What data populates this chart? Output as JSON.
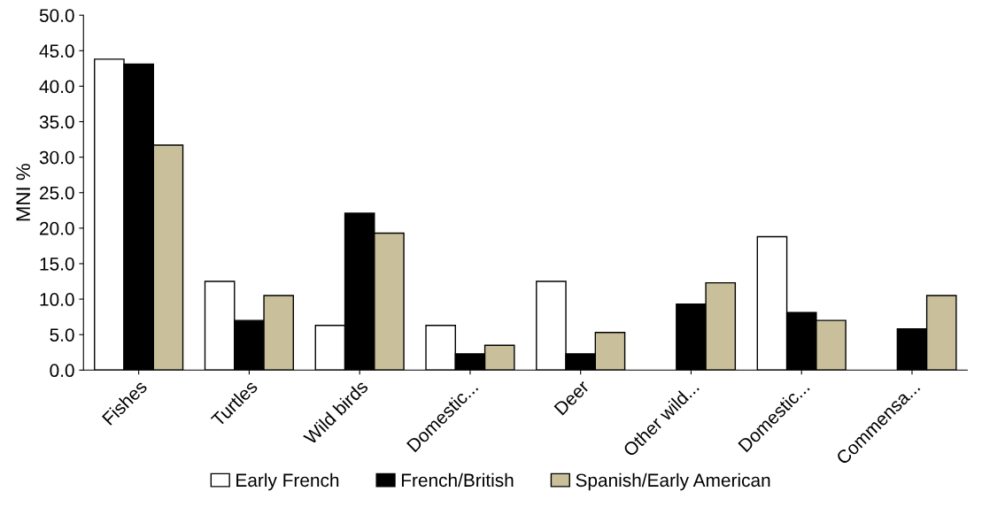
{
  "chart_data": {
    "type": "bar",
    "ylabel": "MNI %",
    "categories": [
      "Fishes",
      "Turtles",
      "Wild birds",
      "Domestic...",
      "Deer",
      "Other wild...",
      "Domestic...",
      "Commensa..."
    ],
    "series": [
      {
        "name": "Early French",
        "color": "#ffffff",
        "values": [
          43.8,
          12.5,
          6.3,
          6.3,
          12.5,
          null,
          18.8,
          null
        ]
      },
      {
        "name": "French/British",
        "color": "#000000",
        "values": [
          43.1,
          7.0,
          22.1,
          2.3,
          2.3,
          9.3,
          8.1,
          5.8
        ]
      },
      {
        "name": "Spanish/Early American",
        "color": "#c9bf9b",
        "values": [
          31.7,
          10.5,
          19.3,
          3.5,
          5.3,
          12.3,
          7.0,
          10.5
        ]
      }
    ],
    "ylim": [
      0,
      50
    ],
    "yticks": [
      {
        "value": 0,
        "label": "0.0"
      },
      {
        "value": 5,
        "label": "5.0"
      },
      {
        "value": 10,
        "label": "10.0"
      },
      {
        "value": 15,
        "label": "15.0"
      },
      {
        "value": 20,
        "label": "20.0"
      },
      {
        "value": 25,
        "label": "25.0"
      },
      {
        "value": 30,
        "label": "30.0"
      },
      {
        "value": 35,
        "label": "35.0"
      },
      {
        "value": 40,
        "label": "40.0"
      },
      {
        "value": 45,
        "label": "45.0"
      },
      {
        "value": 50,
        "label": "50.0"
      }
    ],
    "grid": false,
    "legend": "bottom"
  }
}
